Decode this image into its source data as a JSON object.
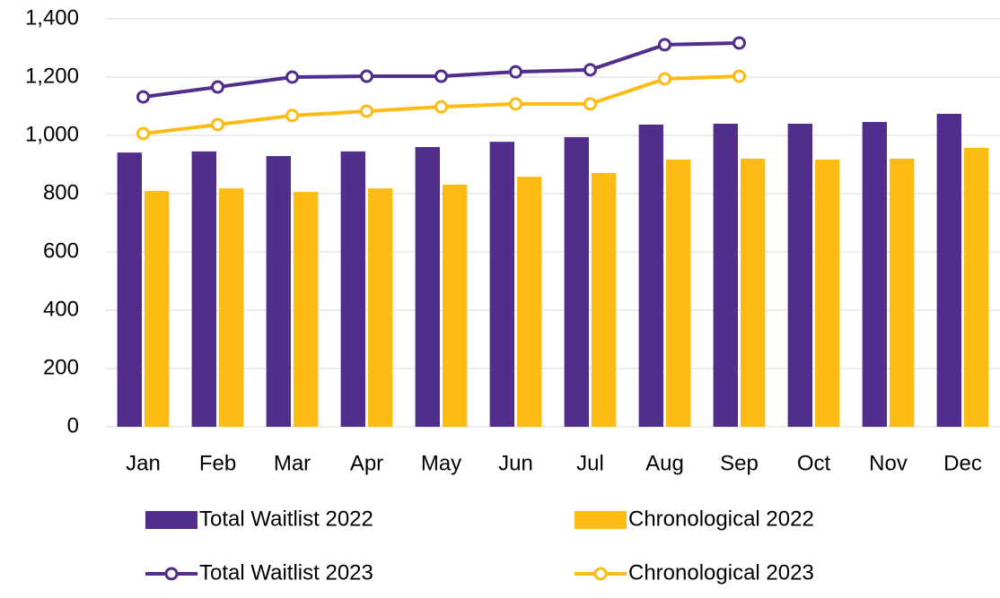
{
  "chart_data": {
    "type": "bar",
    "categories": [
      "Jan",
      "Feb",
      "Mar",
      "Apr",
      "May",
      "Jun",
      "Jul",
      "Aug",
      "Sep",
      "Oct",
      "Nov",
      "Dec"
    ],
    "series": [
      {
        "name": "Total Waitlist 2022",
        "type": "bar",
        "color": "#512d8c",
        "values": [
          941,
          945,
          929,
          945,
          960,
          978,
          994,
          1037,
          1040,
          1040,
          1046,
          1074
        ]
      },
      {
        "name": "Chronological 2022",
        "type": "bar",
        "color": "#fdbb13",
        "values": [
          809,
          818,
          806,
          818,
          831,
          858,
          871,
          917,
          920,
          917,
          920,
          957
        ]
      },
      {
        "name": "Total Waitlist 2023",
        "type": "line",
        "color": "#512d8c",
        "values": [
          1132,
          1166,
          1200,
          1203,
          1203,
          1218,
          1225,
          1311,
          1317,
          null,
          null,
          null
        ]
      },
      {
        "name": "Chronological 2023",
        "type": "line",
        "color": "#fdbb13",
        "values": [
          1006,
          1037,
          1068,
          1083,
          1098,
          1108,
          1108,
          1194,
          1203,
          null,
          null,
          null
        ]
      }
    ],
    "ylim": [
      0,
      1400
    ],
    "yticks": [
      0,
      200,
      400,
      600,
      800,
      {
        "value": 1000,
        "label": "1,000"
      },
      {
        "value": 1200,
        "label": "1,200"
      },
      {
        "value": 1400,
        "label": "1,400"
      }
    ],
    "grid": true,
    "legend": "bottom"
  }
}
